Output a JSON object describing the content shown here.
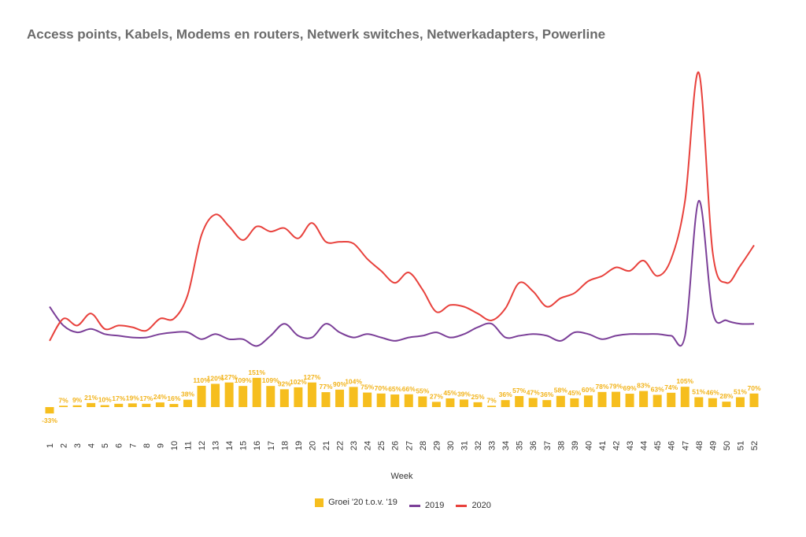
{
  "chart_data": {
    "type": "bar",
    "title": "Access points, Kabels, Modems en routers, Netwerk switches, Netwerkadapters, Powerline",
    "xlabel": "Week",
    "categories": [
      "1",
      "2",
      "3",
      "4",
      "5",
      "6",
      "7",
      "8",
      "9",
      "10",
      "11",
      "12",
      "13",
      "14",
      "15",
      "16",
      "17",
      "18",
      "19",
      "20",
      "21",
      "22",
      "23",
      "24",
      "25",
      "26",
      "27",
      "28",
      "29",
      "30",
      "31",
      "32",
      "33",
      "34",
      "35",
      "36",
      "37",
      "38",
      "39",
      "40",
      "41",
      "42",
      "43",
      "44",
      "45",
      "46",
      "47",
      "48",
      "49",
      "50",
      "51",
      "52"
    ],
    "series": [
      {
        "name": "Groei '20 t.o.v. '19",
        "type": "bar",
        "color": "#f6be1e",
        "values": [
          -33,
          7,
          9,
          21,
          10,
          17,
          19,
          17,
          24,
          16,
          38,
          110,
          120,
          127,
          109,
          151,
          109,
          92,
          102,
          127,
          77,
          90,
          104,
          75,
          70,
          65,
          66,
          55,
          27,
          45,
          39,
          25,
          7,
          36,
          57,
          47,
          36,
          58,
          45,
          60,
          78,
          79,
          69,
          83,
          63,
          74,
          105,
          51,
          46,
          28,
          51,
          70
        ],
        "labels": [
          "-33%",
          "7%",
          "9%",
          "21%",
          "10%",
          "17%",
          "19%",
          "17%",
          "24%",
          "16%",
          "38%",
          "110%",
          "120%",
          "127%",
          "109%",
          "151%",
          "109%",
          "92%",
          "102%",
          "127%",
          "77%",
          "90%",
          "104%",
          "75%",
          "70%",
          "65%",
          "66%",
          "55%",
          "27%",
          "45%",
          "39%",
          "25%",
          "7%",
          "36%",
          "57%",
          "47%",
          "36%",
          "58%",
          "45%",
          "60%",
          "78%",
          "79%",
          "69%",
          "83%",
          "63%",
          "74%",
          "105%",
          "51%",
          "46%",
          "28%",
          "51%",
          "70%"
        ]
      },
      {
        "name": "2019",
        "type": "line",
        "color": "#7b3f98",
        "values": [
          38,
          27,
          23,
          25,
          22,
          21,
          20,
          20,
          22,
          23,
          23,
          19,
          22,
          19,
          19,
          15,
          21,
          28,
          21,
          20,
          28,
          23,
          20,
          22,
          20,
          18,
          20,
          21,
          23,
          20,
          22,
          26,
          28,
          20,
          21,
          22,
          21,
          18,
          23,
          22,
          19,
          21,
          22,
          22,
          22,
          21,
          21,
          100,
          35,
          30,
          28,
          28
        ]
      },
      {
        "name": "2020",
        "type": "line",
        "color": "#e8413c",
        "values": [
          18,
          31,
          27,
          34,
          25,
          27,
          26,
          24,
          31,
          31,
          45,
          80,
          92,
          85,
          77,
          85,
          82,
          84,
          78,
          87,
          76,
          76,
          75,
          66,
          59,
          52,
          58,
          48,
          35,
          39,
          38,
          34,
          30,
          37,
          52,
          47,
          38,
          43,
          46,
          53,
          56,
          61,
          59,
          65,
          56,
          66,
          100,
          175,
          70,
          52,
          62,
          74
        ]
      }
    ],
    "legend_position": "bottom",
    "grid": false
  }
}
